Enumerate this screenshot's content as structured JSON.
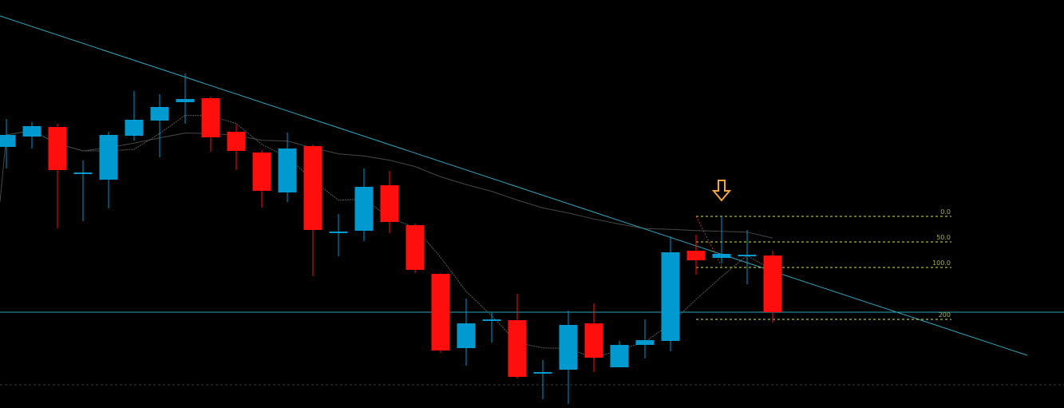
{
  "chart_data": {
    "type": "candlestick",
    "title": "",
    "xlabel": "",
    "ylabel": "",
    "background": "#000000",
    "colors": {
      "up": "#0099d0",
      "down": "#ff0e0e",
      "trendline": "#2aa7bd",
      "moving_average_fast": "#5a5a5a",
      "moving_average_slow": "#474747",
      "fibonacci": "#d2e35a",
      "fib_label": "#a6b43a",
      "arrow": "#f3a83c",
      "horizontal_level": "#2aa7bd",
      "bottom_grid": "#3a3a3a"
    },
    "ylim": [
      0,
      510
    ],
    "candles": [
      {
        "o": 327,
        "c": 342,
        "h": 362,
        "l": 300
      },
      {
        "o": 340,
        "c": 353,
        "h": 358,
        "l": 325
      },
      {
        "o": 352,
        "c": 298,
        "h": 356,
        "l": 225
      },
      {
        "o": 295,
        "c": 295,
        "h": 310,
        "l": 234
      },
      {
        "o": 286,
        "c": 342,
        "h": 346,
        "l": 250
      },
      {
        "o": 341,
        "c": 361,
        "h": 397,
        "l": 335
      },
      {
        "o": 360,
        "c": 377,
        "h": 393,
        "l": 314
      },
      {
        "o": 383,
        "c": 387,
        "h": 419,
        "l": 356
      },
      {
        "o": 388,
        "c": 339,
        "h": 390,
        "l": 321
      },
      {
        "o": 346,
        "c": 322,
        "h": 355,
        "l": 298
      },
      {
        "o": 320,
        "c": 272,
        "h": 323,
        "l": 251
      },
      {
        "o": 270,
        "c": 325,
        "h": 345,
        "l": 258
      },
      {
        "o": 328,
        "c": 223,
        "h": 330,
        "l": 165
      },
      {
        "o": 221,
        "c": 221,
        "h": 243,
        "l": 190
      },
      {
        "o": 222,
        "c": 277,
        "h": 300,
        "l": 209
      },
      {
        "o": 279,
        "c": 233,
        "h": 297,
        "l": 219
      },
      {
        "o": 229,
        "c": 173,
        "h": 231,
        "l": 169
      },
      {
        "o": 168,
        "c": 72,
        "h": 169,
        "l": 69
      },
      {
        "o": 75,
        "c": 106,
        "h": 137,
        "l": 53
      },
      {
        "o": 111,
        "c": 111,
        "h": 120,
        "l": 82
      },
      {
        "o": 110,
        "c": 39,
        "h": 143,
        "l": 37
      },
      {
        "o": 45,
        "c": 45,
        "h": 60,
        "l": 11
      },
      {
        "o": 48,
        "c": 104,
        "h": 122,
        "l": 5
      },
      {
        "o": 106,
        "c": 63,
        "h": 131,
        "l": 45
      },
      {
        "o": 51,
        "c": 79,
        "h": 84,
        "l": 51
      },
      {
        "o": 79,
        "c": 85,
        "h": 111,
        "l": 62
      },
      {
        "o": 84,
        "c": 195,
        "h": 215,
        "l": 71
      },
      {
        "o": 197,
        "c": 185,
        "h": 217,
        "l": 167
      },
      {
        "o": 188,
        "c": 193,
        "h": 240,
        "l": 181
      },
      {
        "o": 190,
        "c": 192,
        "h": 223,
        "l": 155
      },
      {
        "o": 191,
        "c": 120,
        "h": 197,
        "l": 107
      }
    ],
    "fibonacci": {
      "levels": [
        {
          "label": "0.0",
          "value": 240
        },
        {
          "label": "50.0",
          "value": 208
        },
        {
          "label": "100.0",
          "value": 176
        },
        {
          "label": "200",
          "value": 111
        }
      ]
    },
    "horizontal_level": 120,
    "bottom_level": 29,
    "signal_arrow": {
      "direction": "down",
      "candle_index": 28
    }
  }
}
